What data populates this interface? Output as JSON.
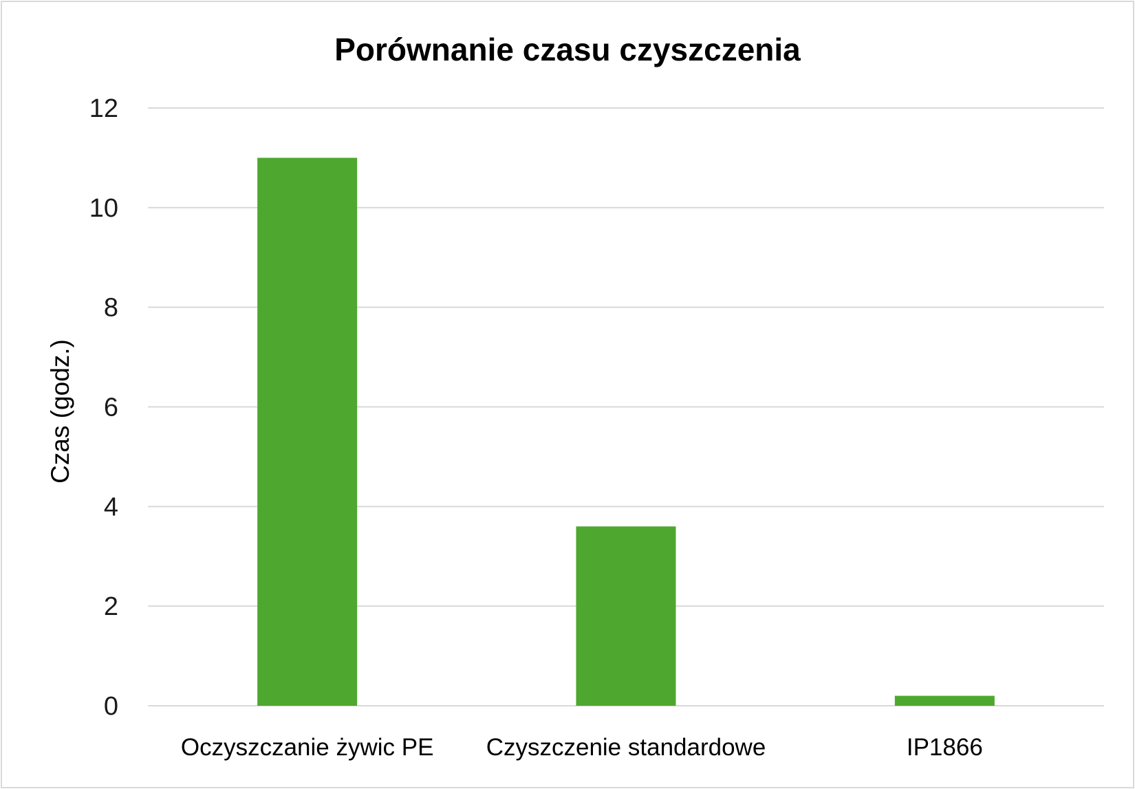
{
  "chart_data": {
    "type": "bar",
    "title": "Porównanie czasu czyszczenia",
    "xlabel": "",
    "ylabel": "Czas (godz.)",
    "categories": [
      "Oczyszczanie żywic PE",
      "Czyszczenie standardowe",
      "IP1866"
    ],
    "values": [
      11,
      3.6,
      0.2
    ],
    "ylim": [
      0,
      12
    ],
    "yticks": [
      "0",
      "2",
      "4",
      "6",
      "8",
      "10",
      "12"
    ],
    "grid": true,
    "legend": "none",
    "colors": {
      "bar": "#4ea72e",
      "grid": "#d9d9d9",
      "border": "#d9d9d9"
    }
  }
}
